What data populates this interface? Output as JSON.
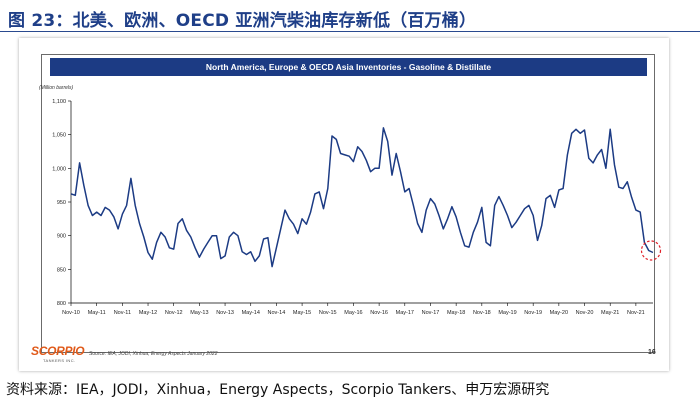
{
  "figure": {
    "title": "图 23：北美、欧洲、OECD 亚洲汽柴油库存新低（百万桶）",
    "source": "资料来源：IEA，JODI，Xinhua，Energy Aspects，Scorpio Tankers、申万宏源研究"
  },
  "slide": {
    "logo_text": "SCORPIO",
    "logo_subtext": "TANKERS INC.",
    "source_note": "Source: IEA, JODI, Xinhua, Energy Aspects January 2022",
    "page_number": "16"
  },
  "colors": {
    "title_text": "#1f3f88",
    "band_fill": "#1c3b84",
    "line": "#1c3b84",
    "highlight_circle": "#e0202a",
    "logo": "#e05a1a"
  },
  "chart_data": {
    "type": "line",
    "title": "North America, Europe & OECD Asia Inventories - Gasoline & Distillate",
    "ylabel": "(Million barrels)",
    "xlabel": "",
    "ylim": [
      800,
      1100
    ],
    "yticks": [
      800,
      850,
      900,
      950,
      1000,
      1050,
      1100
    ],
    "ytick_labels": [
      "800",
      "850",
      "900",
      "950",
      "1,000",
      "1,050",
      "1,100"
    ],
    "xtick_labels": [
      "Nov-10",
      "May-11",
      "Nov-11",
      "May-12",
      "Nov-12",
      "May-13",
      "Nov-13",
      "May-14",
      "Nov-14",
      "May-15",
      "Nov-15",
      "May-16",
      "Nov-16",
      "May-17",
      "Nov-17",
      "May-18",
      "Nov-18",
      "May-19",
      "Nov-19",
      "May-20",
      "Nov-20",
      "May-21",
      "Nov-21"
    ],
    "grid": false,
    "legend": "none",
    "annotation": "dashed circle around latest value",
    "series": [
      {
        "months_from_nov10": true,
        "values": [
          962,
          960,
          1008,
          975,
          945,
          930,
          935,
          930,
          942,
          938,
          928,
          910,
          932,
          945,
          985,
          945,
          918,
          898,
          875,
          865,
          890,
          905,
          898,
          882,
          880,
          918,
          925,
          908,
          898,
          882,
          868,
          880,
          890,
          900,
          900,
          866,
          870,
          898,
          905,
          900,
          876,
          872,
          876,
          862,
          870,
          895,
          897,
          854,
          882,
          910,
          938,
          925,
          917,
          903,
          925,
          917,
          935,
          962,
          965,
          940,
          970,
          1048,
          1043,
          1022,
          1020,
          1018,
          1010,
          1032,
          1025,
          1012,
          995,
          1000,
          1000,
          1060,
          1040,
          990,
          1022,
          995,
          965,
          970,
          945,
          918,
          905,
          938,
          955,
          947,
          930,
          910,
          925,
          943,
          928,
          905,
          885,
          883,
          905,
          920,
          942,
          890,
          885,
          945,
          958,
          945,
          930,
          912,
          920,
          930,
          940,
          945,
          930,
          893,
          915,
          955,
          960,
          942,
          968,
          970,
          1020,
          1052,
          1058,
          1052,
          1057,
          1015,
          1008,
          1020,
          1028,
          1000,
          1058,
          1005,
          972,
          970,
          980,
          957,
          938,
          935,
          890,
          878,
          875
        ]
      }
    ]
  }
}
